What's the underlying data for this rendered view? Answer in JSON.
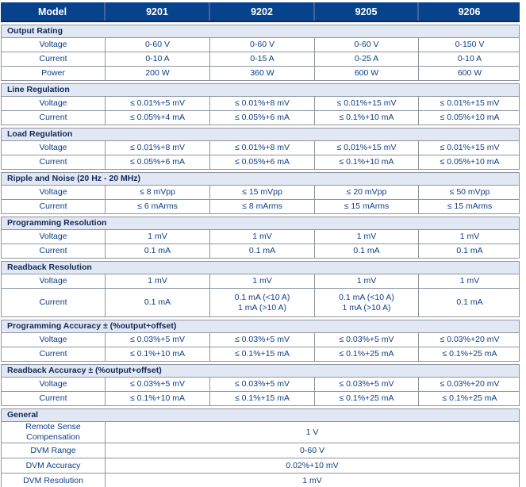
{
  "table": {
    "header": {
      "model_label": "Model",
      "columns": [
        "9201",
        "9202",
        "9205",
        "9206"
      ]
    },
    "sections": [
      {
        "title": "Output Rating",
        "rows": [
          {
            "label": "Voltage",
            "values": [
              "0-60 V",
              "0-60 V",
              "0-60 V",
              "0-150 V"
            ]
          },
          {
            "label": "Current",
            "values": [
              "0-10 A",
              "0-15 A",
              "0-25 A",
              "0-10 A"
            ]
          },
          {
            "label": "Power",
            "values": [
              "200 W",
              "360 W",
              "600 W",
              "600 W"
            ]
          }
        ]
      },
      {
        "title": "Line Regulation",
        "rows": [
          {
            "label": "Voltage",
            "values": [
              "≤ 0.01%+5 mV",
              "≤ 0.01%+8 mV",
              "≤ 0.01%+15 mV",
              "≤ 0.01%+15 mV"
            ]
          },
          {
            "label": "Current",
            "values": [
              "≤ 0.05%+4 mA",
              "≤ 0.05%+6 mA",
              "≤ 0.1%+10 mA",
              "≤ 0.05%+10 mA"
            ]
          }
        ]
      },
      {
        "title": "Load Regulation",
        "rows": [
          {
            "label": "Voltage",
            "values": [
              "≤ 0.01%+8 mV",
              "≤ 0.01%+8 mV",
              "≤ 0.01%+15 mV",
              "≤ 0.01%+15 mV"
            ]
          },
          {
            "label": "Current",
            "values": [
              "≤ 0.05%+6 mA",
              "≤ 0.05%+6 mA",
              "≤ 0.1%+10 mA",
              "≤ 0.05%+10 mA"
            ]
          }
        ]
      },
      {
        "title": "Ripple and Noise (20 Hz - 20 MHz)",
        "rows": [
          {
            "label": "Voltage",
            "values": [
              "≤ 8 mVpp",
              "≤ 15 mVpp",
              "≤ 20 mVpp",
              "≤ 50 mVpp"
            ]
          },
          {
            "label": "Current",
            "values": [
              "≤ 6 mArms",
              "≤ 8 mArms",
              "≤ 15 mArms",
              "≤ 15 mArms"
            ]
          }
        ]
      },
      {
        "title": "Programming Resolution",
        "rows": [
          {
            "label": "Voltage",
            "values": [
              "1 mV",
              "1 mV",
              "1 mV",
              "1 mV"
            ]
          },
          {
            "label": "Current",
            "values": [
              "0.1 mA",
              "0.1 mA",
              "0.1 mA",
              "0.1 mA"
            ]
          }
        ]
      },
      {
        "title": "Readback Resolution",
        "rows": [
          {
            "label": "Voltage",
            "values": [
              "1 mV",
              "1 mV",
              "1 mV",
              "1 mV"
            ]
          },
          {
            "label": "Current",
            "values": [
              "0.1 mA",
              "0.1 mA (<10 A)\n1 mA (>10 A)",
              "0.1 mA (<10 A)\n1 mA (>10 A)",
              "0.1 mA"
            ]
          }
        ]
      },
      {
        "title": "Programming Accuracy ± (%output+offset)",
        "rows": [
          {
            "label": "Voltage",
            "values": [
              "≤ 0.03%+5 mV",
              "≤ 0.03%+5 mV",
              "≤ 0.03%+5 mV",
              "≤ 0.03%+20 mV"
            ]
          },
          {
            "label": "Current",
            "values": [
              "≤ 0.1%+10 mA",
              "≤ 0.1%+15 mA",
              "≤ 0.1%+25 mA",
              "≤ 0.1%+25 mA"
            ]
          }
        ]
      },
      {
        "title": "Readback Accuracy ± (%output+offset)",
        "rows": [
          {
            "label": "Voltage",
            "values": [
              "≤ 0.03%+5 mV",
              "≤ 0.03%+5 mV",
              "≤ 0.03%+5 mV",
              "≤ 0.03%+20 mV"
            ]
          },
          {
            "label": "Current",
            "values": [
              "≤ 0.1%+10 mA",
              "≤ 0.1%+15 mA",
              "≤ 0.1%+25 mA",
              "≤ 0.1%+25 mA"
            ]
          }
        ]
      },
      {
        "title": "General",
        "rows": [
          {
            "label": "Remote Sense Compensation",
            "span": "1 V"
          },
          {
            "label": "DVM Range",
            "span": "0-60 V"
          },
          {
            "label": "DVM Accuracy",
            "span": "0.02%+10 mV"
          },
          {
            "label": "DVM Resolution",
            "span": "1 mV"
          }
        ]
      }
    ],
    "colors": {
      "header_bg": "#07438c",
      "header_text": "#ffffff",
      "section_bg": "#e1e8f3",
      "section_text": "#132757",
      "value_text": "#0e3e86",
      "grid_border": "#8e95a0"
    }
  }
}
